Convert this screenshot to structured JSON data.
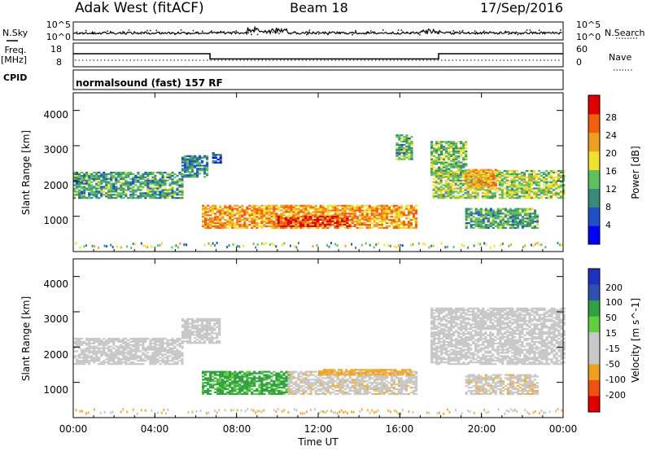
{
  "header": {
    "station": "Adak West (fitACF)",
    "beam": "Beam 18",
    "date": "17/Sep/2016"
  },
  "noise_panel": {
    "left_label": "N.Sky",
    "right_label": "N.Search",
    "left_ticks": [
      "10^5",
      "10^0"
    ],
    "right_ticks": [
      "10^5",
      "10^0"
    ]
  },
  "freq_panel": {
    "left_label_1": "Freq.",
    "left_label_2": "[MHz]",
    "right_label": "Nave",
    "left_ticks": [
      "18",
      "8"
    ],
    "right_ticks": [
      "60",
      "0"
    ]
  },
  "cpid_panel": {
    "label": "CPID",
    "text": "normalsound (fast) 157 RF"
  },
  "time_axis": {
    "ticks": [
      "00:00",
      "04:00",
      "08:00",
      "12:00",
      "16:00",
      "20:00",
      "00:00"
    ],
    "label": "Time UT"
  },
  "colors": {
    "power_scale": [
      "#0000ff",
      "#2050c8",
      "#3a8a78",
      "#60c060",
      "#f0e030",
      "#f0a020",
      "#f06010",
      "#e00000"
    ],
    "velocity_scale": [
      "#e00000",
      "#f05010",
      "#f0a020",
      "#c8c8c8",
      "#c8c8c8",
      "#60d040",
      "#30a040",
      "#3050b0",
      "#2030c0"
    ]
  },
  "chart_data": [
    {
      "type": "heatmap",
      "panel": "power",
      "ylabel": "Slant Range [km]",
      "ylim": [
        0,
        4500
      ],
      "yticks": [
        "1000",
        "2000",
        "3000",
        "4000"
      ],
      "colorbar": {
        "label": "Power [dB]",
        "ticks": [
          "4",
          "8",
          "12",
          "16",
          "20",
          "24",
          "28"
        ],
        "range": [
          0,
          30
        ]
      },
      "x_hours": [
        0,
        24
      ],
      "regions": [
        {
          "t0": 0.0,
          "t1": 5.3,
          "r0": 1500,
          "r1": 2250,
          "p": 11
        },
        {
          "t0": 5.3,
          "t1": 6.6,
          "r0": 2100,
          "r1": 2700,
          "p": 9
        },
        {
          "t0": 6.8,
          "t1": 7.2,
          "r0": 2500,
          "r1": 2800,
          "p": 6
        },
        {
          "t0": 6.3,
          "t1": 16.8,
          "r0": 650,
          "r1": 1300,
          "p": 21
        },
        {
          "t0": 10.0,
          "t1": 13.5,
          "r0": 700,
          "r1": 1000,
          "p": 27
        },
        {
          "t0": 15.8,
          "t1": 16.6,
          "r0": 2600,
          "r1": 3300,
          "p": 12
        },
        {
          "t0": 17.5,
          "t1": 19.2,
          "r0": 2100,
          "r1": 3100,
          "p": 13
        },
        {
          "t0": 17.6,
          "t1": 24.0,
          "r0": 1500,
          "r1": 2300,
          "p": 15
        },
        {
          "t0": 19.2,
          "t1": 20.7,
          "r0": 1800,
          "r1": 2300,
          "p": 20
        },
        {
          "t0": 19.2,
          "t1": 22.7,
          "r0": 650,
          "r1": 1200,
          "p": 11
        }
      ]
    },
    {
      "type": "heatmap",
      "panel": "velocity",
      "ylabel": "Slant Range [km]",
      "ylim": [
        0,
        4500
      ],
      "yticks": [
        "1000",
        "2000",
        "3000",
        "4000"
      ],
      "colorbar": {
        "label": "Velocity [m s^-1]",
        "ticks": [
          "200",
          "100",
          "50",
          "15",
          "-15",
          "-50",
          "-100",
          "-200"
        ],
        "range": [
          -250,
          250
        ]
      },
      "x_hours": [
        0,
        24
      ],
      "regions": [
        {
          "t0": 0.0,
          "t1": 5.3,
          "r0": 1500,
          "r1": 2250,
          "v": 0
        },
        {
          "t0": 5.3,
          "t1": 7.2,
          "r0": 2100,
          "r1": 2800,
          "v": 0
        },
        {
          "t0": 6.3,
          "t1": 10.5,
          "r0": 650,
          "r1": 1300,
          "v": 40
        },
        {
          "t0": 10.5,
          "t1": 16.8,
          "r0": 650,
          "r1": 1300,
          "v": -5
        },
        {
          "t0": 12.0,
          "t1": 16.5,
          "r0": 1200,
          "r1": 1350,
          "v": -30
        },
        {
          "t0": 17.5,
          "t1": 24.0,
          "r0": 1500,
          "r1": 3100,
          "v": 0
        },
        {
          "t0": 19.2,
          "t1": 22.7,
          "r0": 650,
          "r1": 1200,
          "v": -5
        }
      ]
    },
    {
      "type": "line",
      "panel": "freq",
      "ylabel": "Freq. [MHz]",
      "ylim": [
        8,
        18
      ],
      "x_hours": [
        0,
        6.7,
        6.7,
        17.9,
        17.9,
        24
      ],
      "values": [
        13.5,
        13.5,
        11.3,
        11.3,
        13.5,
        13.5
      ]
    }
  ]
}
